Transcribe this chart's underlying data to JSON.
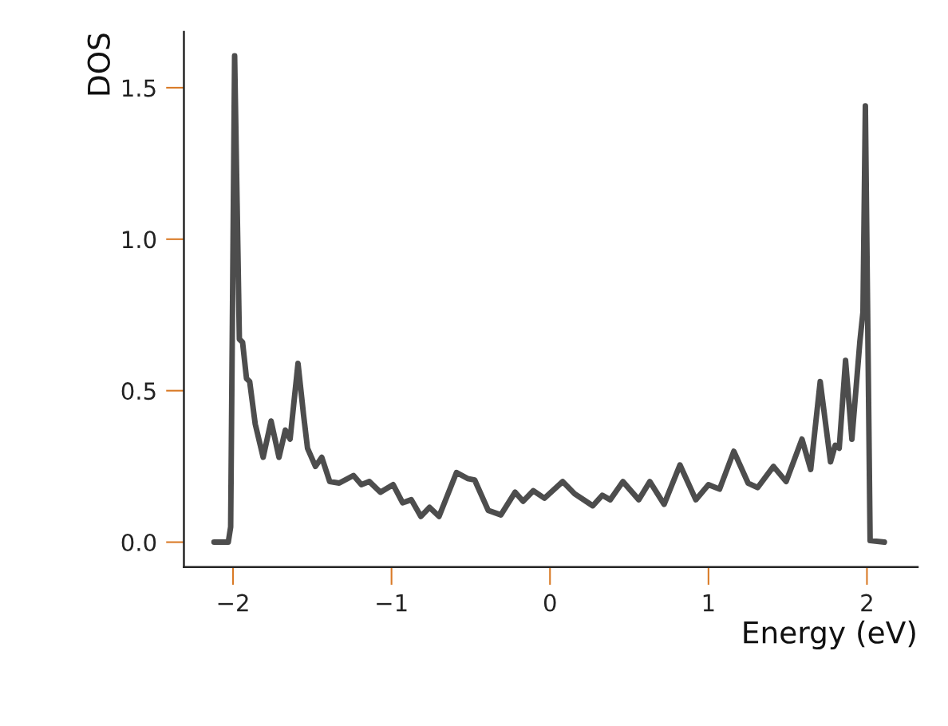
{
  "chart_data": {
    "type": "line",
    "xlabel": "Energy (eV)",
    "ylabel": "DOS",
    "xlim": [
      -2.31,
      2.32
    ],
    "ylim": [
      -0.082,
      1.684
    ],
    "xticks": [
      {
        "value": -2,
        "label": "−2"
      },
      {
        "value": -1,
        "label": "−1"
      },
      0,
      1,
      2
    ],
    "yticks": [
      {
        "value": 0,
        "label": "0.0"
      },
      {
        "value": 0.5,
        "label": "0.5"
      },
      {
        "value": 1,
        "label": "1.0"
      },
      1.5
    ],
    "grid": false,
    "legend": false,
    "series": [
      {
        "color": "#4d4d4d",
        "x": [
          -2.12,
          -2.03,
          -2.015,
          -1.99,
          -1.96,
          -1.94,
          -1.915,
          -1.895,
          -1.86,
          -1.81,
          -1.76,
          -1.71,
          -1.67,
          -1.64,
          -1.59,
          -1.555,
          -1.53,
          -1.48,
          -1.44,
          -1.39,
          -1.33,
          -1.24,
          -1.19,
          -1.14,
          -1.07,
          -0.99,
          -0.93,
          -0.875,
          -0.815,
          -0.76,
          -0.7,
          -0.59,
          -0.52,
          -0.475,
          -0.39,
          -0.31,
          -0.22,
          -0.17,
          -0.105,
          -0.035,
          0.08,
          0.155,
          0.27,
          0.33,
          0.38,
          0.46,
          0.56,
          0.63,
          0.72,
          0.82,
          0.92,
          1.0,
          1.07,
          1.16,
          1.25,
          1.31,
          1.41,
          1.49,
          1.59,
          1.645,
          1.705,
          1.77,
          1.8,
          1.825,
          1.865,
          1.905,
          1.955,
          1.975,
          1.99,
          2.02,
          2.11
        ],
        "values": [
          0,
          0,
          0.05,
          1.605,
          0.67,
          0.66,
          0.54,
          0.53,
          0.39,
          0.28,
          0.4,
          0.28,
          0.37,
          0.34,
          0.59,
          0.42,
          0.31,
          0.25,
          0.28,
          0.2,
          0.195,
          0.22,
          0.19,
          0.2,
          0.165,
          0.19,
          0.13,
          0.14,
          0.085,
          0.115,
          0.085,
          0.23,
          0.21,
          0.205,
          0.105,
          0.09,
          0.165,
          0.135,
          0.17,
          0.145,
          0.2,
          0.16,
          0.12,
          0.155,
          0.14,
          0.2,
          0.14,
          0.2,
          0.125,
          0.255,
          0.14,
          0.19,
          0.175,
          0.3,
          0.195,
          0.18,
          0.25,
          0.2,
          0.34,
          0.24,
          0.53,
          0.265,
          0.32,
          0.31,
          0.6,
          0.34,
          0.66,
          0.76,
          1.44,
          0.005,
          0
        ]
      }
    ]
  }
}
